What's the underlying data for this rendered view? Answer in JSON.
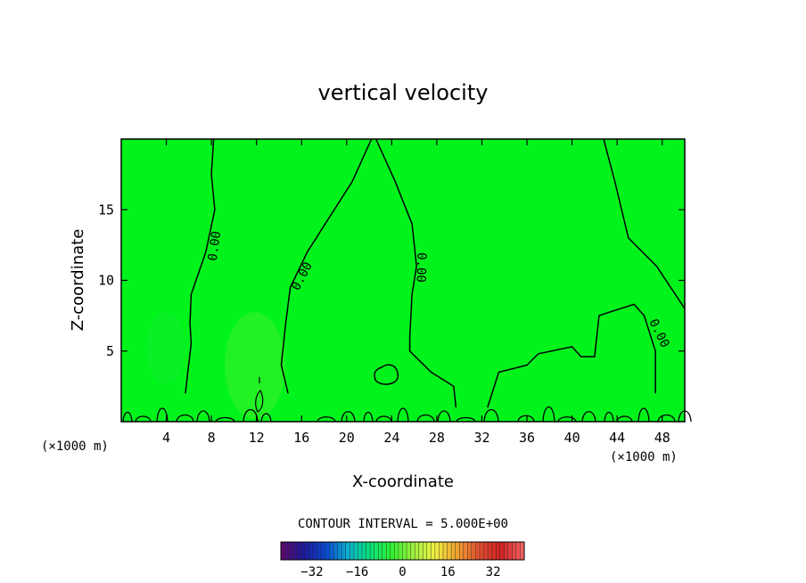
{
  "chart_data": {
    "type": "heatmap",
    "title": "vertical velocity",
    "xlabel": "X-coordinate",
    "ylabel": "Z-coordinate",
    "x_unit": "(×1000 m)",
    "xlim": [
      0,
      50
    ],
    "ylim": [
      0,
      20
    ],
    "x_ticks": [
      "4",
      "8",
      "12",
      "16",
      "20",
      "24",
      "28",
      "32",
      "36",
      "40",
      "44",
      "48"
    ],
    "y_ticks": [
      "5",
      "10",
      "15"
    ],
    "background_color": "#00f41c",
    "contour_labels": [
      "0.00",
      "0.00",
      "0.00",
      "0.00",
      "0.00"
    ],
    "contour_lines": [
      [
        [
          8.2,
          20
        ],
        [
          8.0,
          17.5
        ],
        [
          8.3,
          15
        ],
        [
          7.5,
          12
        ],
        [
          6.2,
          9
        ],
        [
          6.1,
          7
        ],
        [
          6.2,
          5.5
        ],
        [
          5.9,
          3.5
        ],
        [
          5.7,
          2
        ]
      ],
      [
        [
          22.2,
          20
        ],
        [
          20.5,
          17
        ],
        [
          18.5,
          14.5
        ],
        [
          16.5,
          12
        ],
        [
          15,
          9.5
        ],
        [
          14.6,
          7
        ],
        [
          14.2,
          4
        ],
        [
          14.8,
          2
        ]
      ],
      [
        [
          22.6,
          20
        ],
        [
          24.3,
          17
        ],
        [
          25.8,
          14
        ],
        [
          26.2,
          11
        ],
        [
          25.8,
          9
        ],
        [
          25.6,
          6
        ],
        [
          25.6,
          5
        ],
        [
          27.5,
          3.5
        ],
        [
          29.5,
          2.5
        ],
        [
          29.7,
          1
        ]
      ],
      [
        [
          42.8,
          20
        ],
        [
          43.8,
          17
        ],
        [
          45,
          13
        ],
        [
          47.5,
          11
        ],
        [
          50,
          8
        ]
      ],
      [
        [
          32.5,
          1
        ],
        [
          33.5,
          3.5
        ],
        [
          36,
          4
        ],
        [
          37,
          4.8
        ],
        [
          40,
          5.3
        ],
        [
          40.8,
          4.6
        ],
        [
          42,
          4.6
        ],
        [
          42.4,
          7.5
        ],
        [
          43.5,
          7.8
        ],
        [
          45.5,
          8.3
        ],
        [
          46.4,
          7.5
        ],
        [
          47.4,
          5
        ],
        [
          47.4,
          2
        ]
      ]
    ],
    "colorbar": {
      "label": "CONTOUR INTERVAL = 5.000E+00",
      "ticks": [
        "−32",
        "−16",
        "0",
        "16",
        "32"
      ],
      "tick_values": [
        -32,
        -16,
        0,
        16,
        32
      ],
      "range": [
        -43,
        43
      ],
      "colors": [
        "#5a0a6e",
        "#1a1a9a",
        "#0a4ad0",
        "#0ab0d0",
        "#0ae07a",
        "#30f030",
        "#a0f040",
        "#f0f040",
        "#f0a030",
        "#e05030",
        "#d02020",
        "#f06060"
      ]
    }
  }
}
